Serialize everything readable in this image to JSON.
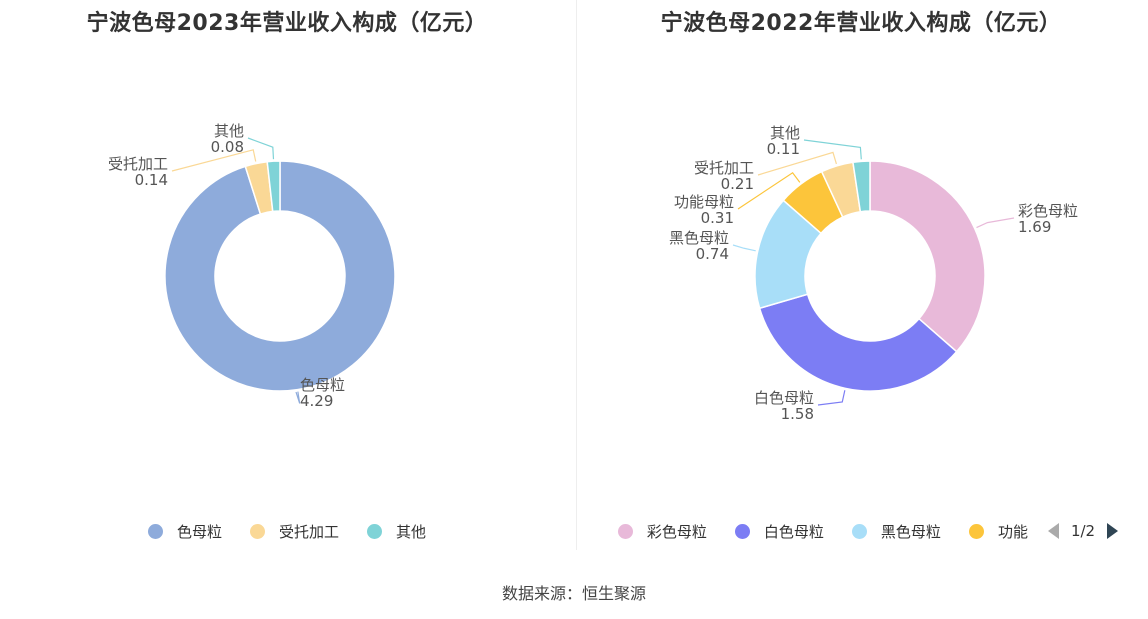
{
  "chart_data": [
    {
      "type": "pie",
      "title": "宁波色母2023年营业收入构成（亿元）",
      "slices": [
        {
          "name": "色母粒",
          "value": 4.29,
          "value_label": "4.29",
          "color": "#8eabdb"
        },
        {
          "name": "受托加工",
          "value": 0.14,
          "value_label": "0.14",
          "color": "#fad896"
        },
        {
          "name": "其他",
          "value": 0.08,
          "value_label": "0.08",
          "color": "#7fd3d7"
        }
      ],
      "legend": [
        "色母粒",
        "受托加工",
        "其他"
      ],
      "legend_position": "bottom"
    },
    {
      "type": "pie",
      "title": "宁波色母2022年营业收入构成（亿元）",
      "slices": [
        {
          "name": "彩色母粒",
          "value": 1.69,
          "value_label": "1.69",
          "color": "#e8b9d9"
        },
        {
          "name": "白色母粒",
          "value": 1.58,
          "value_label": "1.58",
          "color": "#7c7df4"
        },
        {
          "name": "黑色母粒",
          "value": 0.74,
          "value_label": "0.74",
          "color": "#a8def8"
        },
        {
          "name": "功能母粒",
          "value": 0.31,
          "value_label": "0.31",
          "color": "#fcc53b"
        },
        {
          "name": "受托加工",
          "value": 0.21,
          "value_label": "0.21",
          "color": "#fad896"
        },
        {
          "name": "其他",
          "value": 0.11,
          "value_label": "0.11",
          "color": "#7fd3d7"
        }
      ],
      "legend": [
        "彩色母粒",
        "白色母粒",
        "黑色母粒",
        "功能"
      ],
      "legend_pager": "1/2",
      "legend_position": "bottom"
    }
  ],
  "source": "数据来源：恒生聚源"
}
